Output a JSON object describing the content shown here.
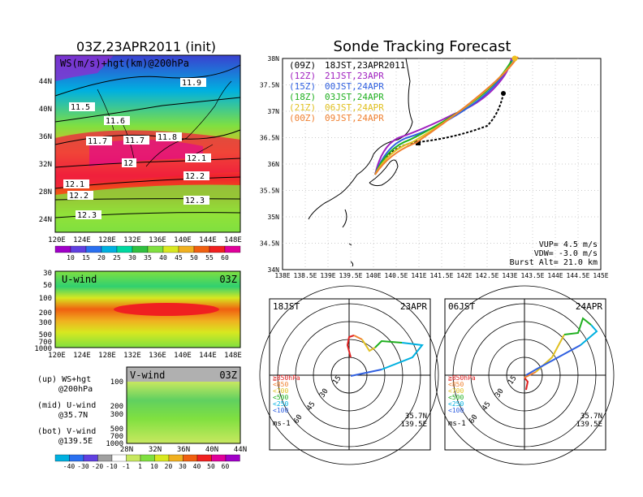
{
  "left": {
    "title": "03Z,23APR2011 (init)",
    "map200": {
      "label": "WS(m/s)+hgt(km)@200hPa",
      "lat_labels": [
        "44N",
        "40N",
        "36N",
        "32N",
        "28N",
        "24N"
      ],
      "lon_labels": [
        "120E",
        "124E",
        "128E",
        "132E",
        "136E",
        "140E",
        "144E",
        "148E"
      ],
      "contour_labels": [
        "11.5",
        "11.6",
        "11.7",
        "11.7",
        "11.8",
        "11.9",
        "12",
        "12.1",
        "12.1",
        "12.2",
        "12.2",
        "12.3",
        "12.3"
      ],
      "colorbar": [
        "10",
        "15",
        "20",
        "25",
        "30",
        "35",
        "40",
        "45",
        "50",
        "55",
        "60"
      ]
    },
    "uwind": {
      "label": "U-wind",
      "time": "03Z",
      "p_labels": [
        "30",
        "50",
        "100",
        "200",
        "300",
        "500",
        "700",
        "1000"
      ],
      "lon_labels": [
        "120E",
        "124E",
        "128E",
        "132E",
        "136E",
        "140E",
        "144E",
        "148E"
      ]
    },
    "vwind": {
      "label": "V-wind",
      "time": "03Z",
      "p_labels": [
        "100",
        "200",
        "300",
        "500",
        "700",
        "1000"
      ],
      "lat_labels": [
        "28N",
        "32N",
        "36N",
        "40N",
        "44N"
      ],
      "colorbar": [
        "-40",
        "-30",
        "-20",
        "-10",
        "-1",
        "1",
        "10",
        "20",
        "30",
        "40",
        "50",
        "60"
      ]
    },
    "legend": [
      {
        "a": "(up) WS+hgt",
        "b": "@200hPa"
      },
      {
        "a": "(mid) U-wind",
        "b": "@35.7N"
      },
      {
        "a": "(bot) V-wind",
        "b": "@139.5E"
      }
    ]
  },
  "right": {
    "title": "Sonde Tracking Forecast",
    "lat_labels": [
      "38N",
      "37.5N",
      "37N",
      "36.5N",
      "36N",
      "35.5N",
      "35N",
      "34.5N",
      "34N"
    ],
    "lon_labels": [
      "138E",
      "138.5E",
      "139E",
      "139.5E",
      "140E",
      "140.5E",
      "141E",
      "141.5E",
      "142E",
      "142.5E",
      "143E",
      "143.5E",
      "144E",
      "144.5E",
      "145E"
    ],
    "legend": [
      {
        "z": "(09Z)",
        "t": "18JST,23APR2011",
        "color": "#000000"
      },
      {
        "z": "(12Z)",
        "t": "21JST,23APR",
        "color": "#a020c0"
      },
      {
        "z": "(15Z)",
        "t": "00JST,24APR",
        "color": "#3060e0"
      },
      {
        "z": "(18Z)",
        "t": "03JST,24APR",
        "color": "#20b020"
      },
      {
        "z": "(21Z)",
        "t": "06JST,24APR",
        "color": "#e0c020"
      },
      {
        "z": "(00Z)",
        "t": "09JST,24APR",
        "color": "#f08030"
      }
    ],
    "params": [
      "VUP= 4.5 m/s",
      "VDW= -3.0 m/s",
      "Burst Alt= 21.0 km"
    ]
  },
  "hodo1": {
    "time": "18JST",
    "date": "23APR",
    "unit": "ms-1",
    "loc1": "35.7N",
    "loc2": "139.5E",
    "rings": [
      "15",
      "30",
      "45",
      "60"
    ],
    "levels": [
      "≧850hPa",
      "<850",
      "<700",
      "<500",
      "<250",
      "<100"
    ]
  },
  "hodo2": {
    "time": "06JST",
    "date": "24APR",
    "unit": "ms-1",
    "loc1": "35.7N",
    "loc2": "139.5E",
    "rings": [
      "15",
      "30",
      "45",
      "60"
    ],
    "levels": [
      "≧850hPa",
      "<850",
      "<700",
      "<500",
      "<250",
      "<100"
    ]
  },
  "colors": {
    "c10": "#a000c8",
    "c15": "#6040e0",
    "c20": "#2a70f0",
    "c25": "#00b0e0",
    "c30": "#00d8a0",
    "c35": "#80e040",
    "c40": "#d8e820",
    "c45": "#f0b020",
    "c50": "#f06010",
    "c55": "#f02020",
    "c60": "#e0009a"
  }
}
